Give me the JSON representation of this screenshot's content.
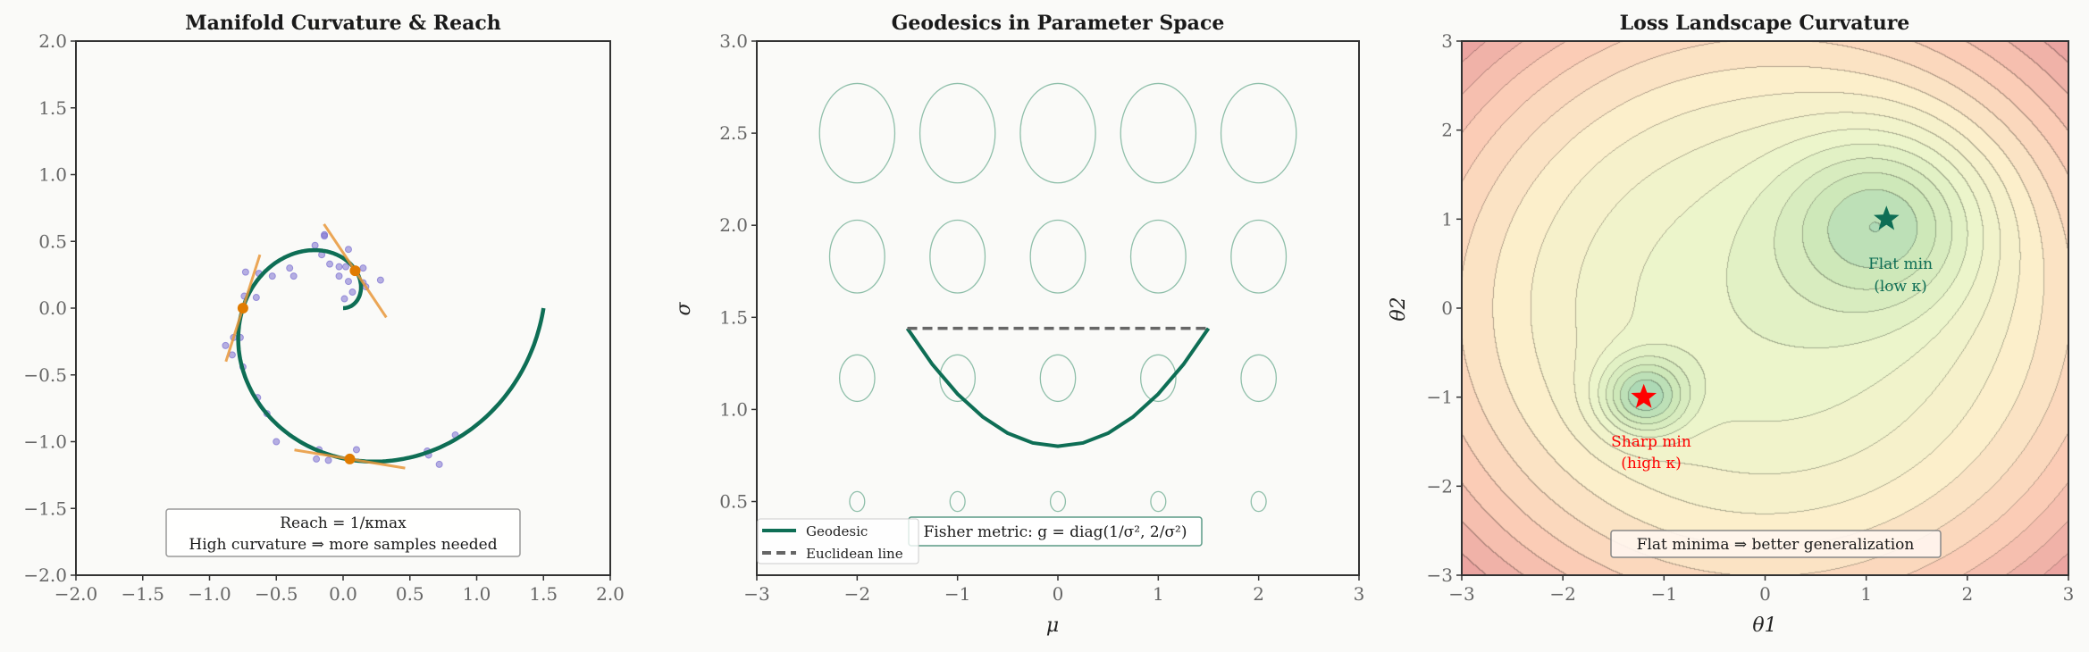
{
  "colors": {
    "curve": "#0e6e55",
    "tangent": "#e8963a",
    "tangent_point": "#e07b00",
    "samples": "#7b6fd0",
    "ellipse": "#8fbfaa",
    "euclid": "#666666",
    "sharp": "#ff0000",
    "flat": "#0e6e55"
  },
  "chart_data": [
    {
      "type": "line",
      "title": "Manifold Curvature & Reach",
      "xlim": [
        -2,
        2
      ],
      "ylim": [
        -2,
        2
      ],
      "xticks": [
        "−2.0",
        "−1.5",
        "−1.0",
        "−0.5",
        "0.0",
        "0.5",
        "1.0",
        "1.5",
        "2.0"
      ],
      "yticks": [
        "−2.0",
        "−1.5",
        "−1.0",
        "−0.5",
        "0.0",
        "0.5",
        "1.0",
        "1.5",
        "2.0"
      ],
      "curve": {
        "kind": "spiral",
        "r_end": 1.5,
        "turns": 1
      },
      "tangent_points": [
        [
          0.09,
          0.28
        ],
        [
          -0.75,
          0.0
        ],
        [
          0.05,
          -1.13
        ]
      ],
      "samples": [
        [
          -0.14,
          0.55
        ],
        [
          -0.14,
          0.54
        ],
        [
          -0.21,
          0.47
        ],
        [
          0.04,
          0.44
        ],
        [
          -0.16,
          0.4
        ],
        [
          -0.1,
          0.33
        ],
        [
          -0.4,
          0.3
        ],
        [
          -0.03,
          0.31
        ],
        [
          0.02,
          0.31
        ],
        [
          0.15,
          0.3
        ],
        [
          -0.73,
          0.27
        ],
        [
          -0.63,
          0.26
        ],
        [
          -0.53,
          0.24
        ],
        [
          -0.37,
          0.24
        ],
        [
          -0.03,
          0.24
        ],
        [
          0.28,
          0.21
        ],
        [
          0.04,
          0.2
        ],
        [
          0.15,
          0.19
        ],
        [
          0.17,
          0.16
        ],
        [
          0.07,
          0.12
        ],
        [
          -0.74,
          0.09
        ],
        [
          -0.65,
          0.08
        ],
        [
          0.01,
          0.07
        ],
        [
          -0.82,
          -0.22
        ],
        [
          -0.77,
          -0.22
        ],
        [
          -0.88,
          -0.28
        ],
        [
          -0.83,
          -0.35
        ],
        [
          -0.75,
          -0.44
        ],
        [
          -0.64,
          -0.67
        ],
        [
          -0.57,
          -0.79
        ],
        [
          -0.5,
          -1.0
        ],
        [
          -0.18,
          -1.06
        ],
        [
          0.1,
          -1.06
        ],
        [
          -0.2,
          -1.13
        ],
        [
          -0.11,
          -1.14
        ],
        [
          0.63,
          -1.07
        ],
        [
          0.64,
          -1.1
        ],
        [
          0.84,
          -0.95
        ],
        [
          0.72,
          -1.17
        ]
      ],
      "annotation": [
        "Reach = 1/κmax",
        "High curvature ⇒ more samples needed"
      ]
    },
    {
      "type": "line",
      "title": "Geodesics in Parameter Space",
      "xlabel": "μ",
      "ylabel": "σ",
      "xlim": [
        -3,
        3
      ],
      "ylim": [
        0.1,
        3.0
      ],
      "xticks": [
        "−3",
        "−2",
        "−1",
        "0",
        "1",
        "2",
        "3"
      ],
      "yticks": [
        "0.5",
        "1.0",
        "1.5",
        "2.0",
        "2.5",
        "3.0"
      ],
      "ellipse_mu": [
        -2,
        -1,
        0,
        1,
        2
      ],
      "ellipse_sigma": [
        0.5,
        1.17,
        1.83,
        2.5
      ],
      "series": [
        {
          "name": "Geodesic",
          "x": [
            -1.5,
            -1.25,
            -1.0,
            -0.75,
            -0.5,
            -0.25,
            0,
            0.25,
            0.5,
            0.75,
            1.0,
            1.25,
            1.5
          ],
          "y": [
            1.44,
            1.244,
            1.084,
            0.96,
            0.871,
            0.818,
            0.8,
            0.818,
            0.871,
            0.96,
            1.084,
            1.244,
            1.44
          ]
        },
        {
          "name": "Euclidean line",
          "x": [
            -1.5,
            1.5
          ],
          "y": [
            1.44,
            1.44
          ]
        }
      ],
      "annotation": "Fisher metric: g = diag(1/σ², 2/σ²)",
      "legend_position": "lower-left"
    },
    {
      "type": "contour",
      "title": "Loss Landscape Curvature",
      "xlabel": "θ1",
      "ylabel": "θ2",
      "xlim": [
        -3,
        3
      ],
      "ylim": [
        -3,
        3
      ],
      "xticks": [
        "−3",
        "−2",
        "−1",
        "0",
        "1",
        "2",
        "3"
      ],
      "yticks": [
        "−3",
        "−2",
        "−1",
        "0",
        "1",
        "2",
        "3"
      ],
      "minima": [
        {
          "label": [
            "Sharp min",
            "(high κ)"
          ],
          "x": -1.2,
          "y": -1.0
        },
        {
          "label": [
            "Flat min",
            "(low κ)"
          ],
          "x": 1.2,
          "y": 1.0
        }
      ],
      "annotation": "Flat minima ⇒ better generalization"
    }
  ]
}
